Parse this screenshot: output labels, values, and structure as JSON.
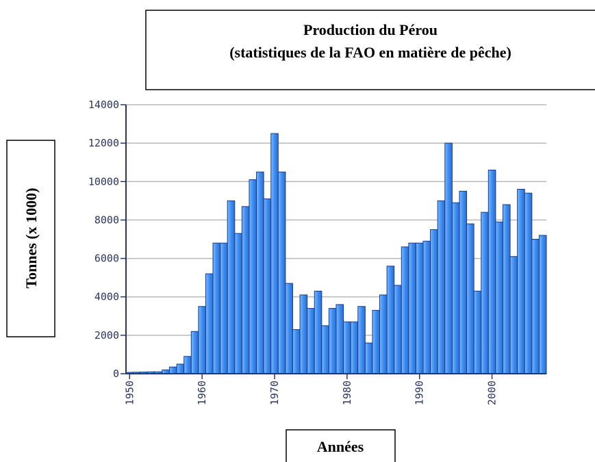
{
  "chart_data": {
    "type": "bar",
    "title": [
      "Production du Pérou",
      "(statistiques de la FAO en matière de pêche)"
    ],
    "ylabel": "Tonnes (x 1000)",
    "xlabel": "Années",
    "x": [
      1950,
      1951,
      1952,
      1953,
      1954,
      1955,
      1956,
      1957,
      1958,
      1959,
      1960,
      1961,
      1962,
      1963,
      1964,
      1965,
      1966,
      1967,
      1968,
      1969,
      1970,
      1971,
      1972,
      1973,
      1974,
      1975,
      1976,
      1977,
      1978,
      1979,
      1980,
      1981,
      1982,
      1983,
      1984,
      1985,
      1986,
      1987,
      1988,
      1989,
      1990,
      1991,
      1992,
      1993,
      1994,
      1995,
      1996,
      1997,
      1998,
      1999,
      2000,
      2001,
      2002,
      2003,
      2004,
      2005,
      2006,
      2007
    ],
    "values": [
      70,
      80,
      90,
      100,
      100,
      200,
      350,
      500,
      900,
      2200,
      3500,
      5200,
      6800,
      6800,
      9000,
      7300,
      8700,
      10100,
      10500,
      9100,
      12500,
      10500,
      4700,
      2300,
      4100,
      3400,
      4300,
      2500,
      3400,
      3600,
      2700,
      2700,
      3500,
      1600,
      3300,
      4100,
      5600,
      4600,
      6600,
      6800,
      6800,
      6900,
      7500,
      9000,
      12000,
      8900,
      9500,
      7800,
      4300,
      8400,
      10600,
      7900,
      8800,
      6100,
      9600,
      9400,
      7000,
      7200
    ],
    "color": "#3d8ef0",
    "xlim": [
      1950,
      2008
    ],
    "xticks": [
      1950,
      1960,
      1970,
      1980,
      1990,
      2000
    ],
    "ylim": [
      0,
      14000
    ],
    "yticks": [
      0,
      2000,
      4000,
      6000,
      8000,
      10000,
      12000,
      14000
    ],
    "grid": true
  }
}
